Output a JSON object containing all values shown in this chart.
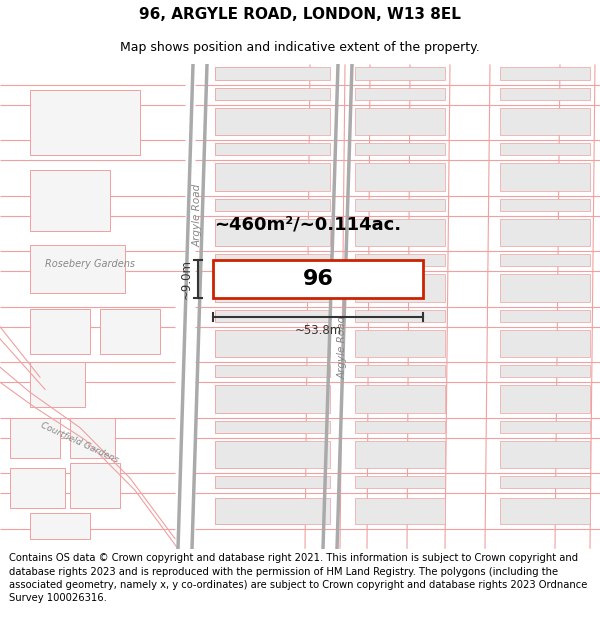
{
  "title": "96, ARGYLE ROAD, LONDON, W13 8EL",
  "subtitle": "Map shows position and indicative extent of the property.",
  "footer": "Contains OS data © Crown copyright and database right 2021. This information is subject to Crown copyright and database rights 2023 and is reproduced with the permission of HM Land Registry. The polygons (including the associated geometry, namely x, y co-ordinates) are subject to Crown copyright and database rights 2023 Ordnance Survey 100026316.",
  "area_label": "~460m²/~0.114ac.",
  "width_label": "~53.8m",
  "depth_label": "~9.0m",
  "plot_number": "96",
  "map_bg": "#ffffff",
  "plot_fill": "#ffffff",
  "plot_edge": "#cc2200",
  "road_line_color": "#f0a0a0",
  "road_outline_color": "#e08080",
  "block_fill": "#e8e8e8",
  "block_edge": "#f0a0a0",
  "block_outline": "#dddddd",
  "argyle_road_color": "#aaaaaa",
  "label_color": "#888888",
  "dim_color": "#333333",
  "title_fontsize": 11,
  "subtitle_fontsize": 9,
  "footer_fontsize": 7.2,
  "road_label_fontsize": 7.5,
  "area_fontsize": 13,
  "dim_fontsize": 8.5,
  "plot_num_fontsize": 16
}
